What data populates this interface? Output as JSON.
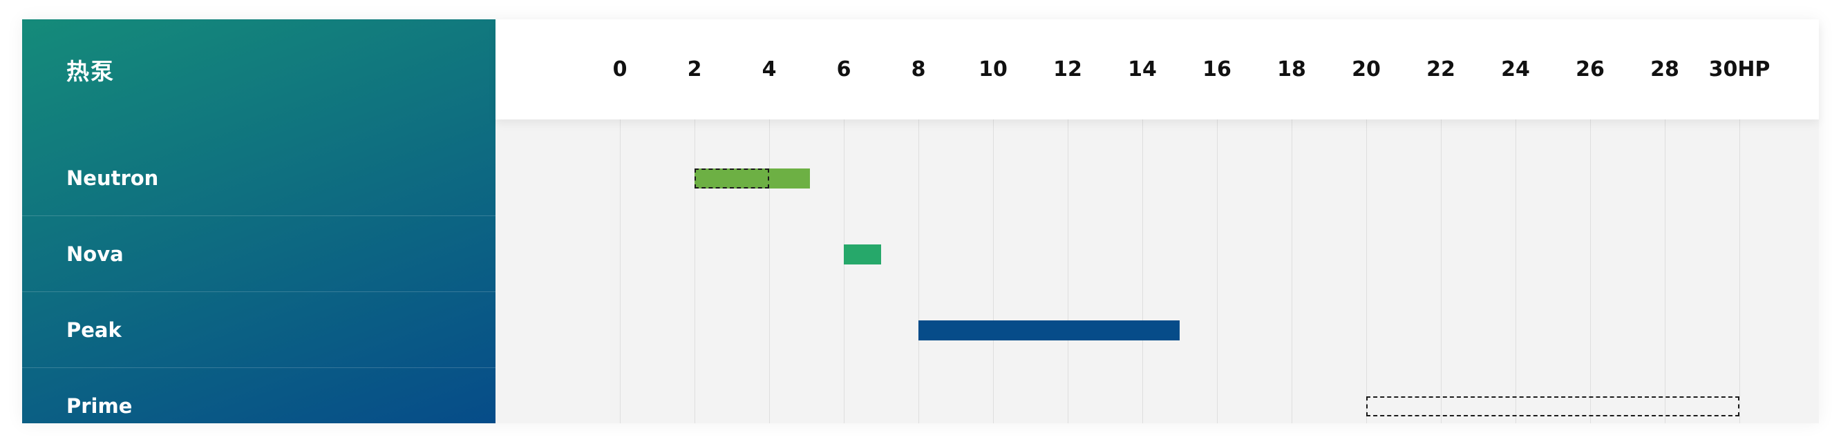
{
  "header": {
    "title": "热泵"
  },
  "chart_data": {
    "type": "bar",
    "orientation": "horizontal",
    "categories": [
      "Neutron",
      "Nova",
      "Peak",
      "Prime"
    ],
    "x_ticks": [
      "0",
      "2",
      "4",
      "6",
      "8",
      "10",
      "12",
      "14",
      "16",
      "18",
      "20",
      "22",
      "24",
      "26",
      "28",
      "30HP"
    ],
    "xlim": [
      0,
      30
    ],
    "ranges": [
      {
        "category": "Neutron",
        "start": 2,
        "end": 5.1,
        "color": "#6db044",
        "marker": {
          "start": 2,
          "end": 4
        }
      },
      {
        "category": "Nova",
        "start": 6,
        "end": 7,
        "color": "#26a86a",
        "marker": null
      },
      {
        "category": "Peak",
        "start": 8,
        "end": 15,
        "color": "#064c89",
        "marker": null
      },
      {
        "category": "Prime",
        "start": null,
        "end": null,
        "color": null,
        "marker": {
          "start": 20,
          "end": 30
        }
      }
    ],
    "grid": true
  }
}
